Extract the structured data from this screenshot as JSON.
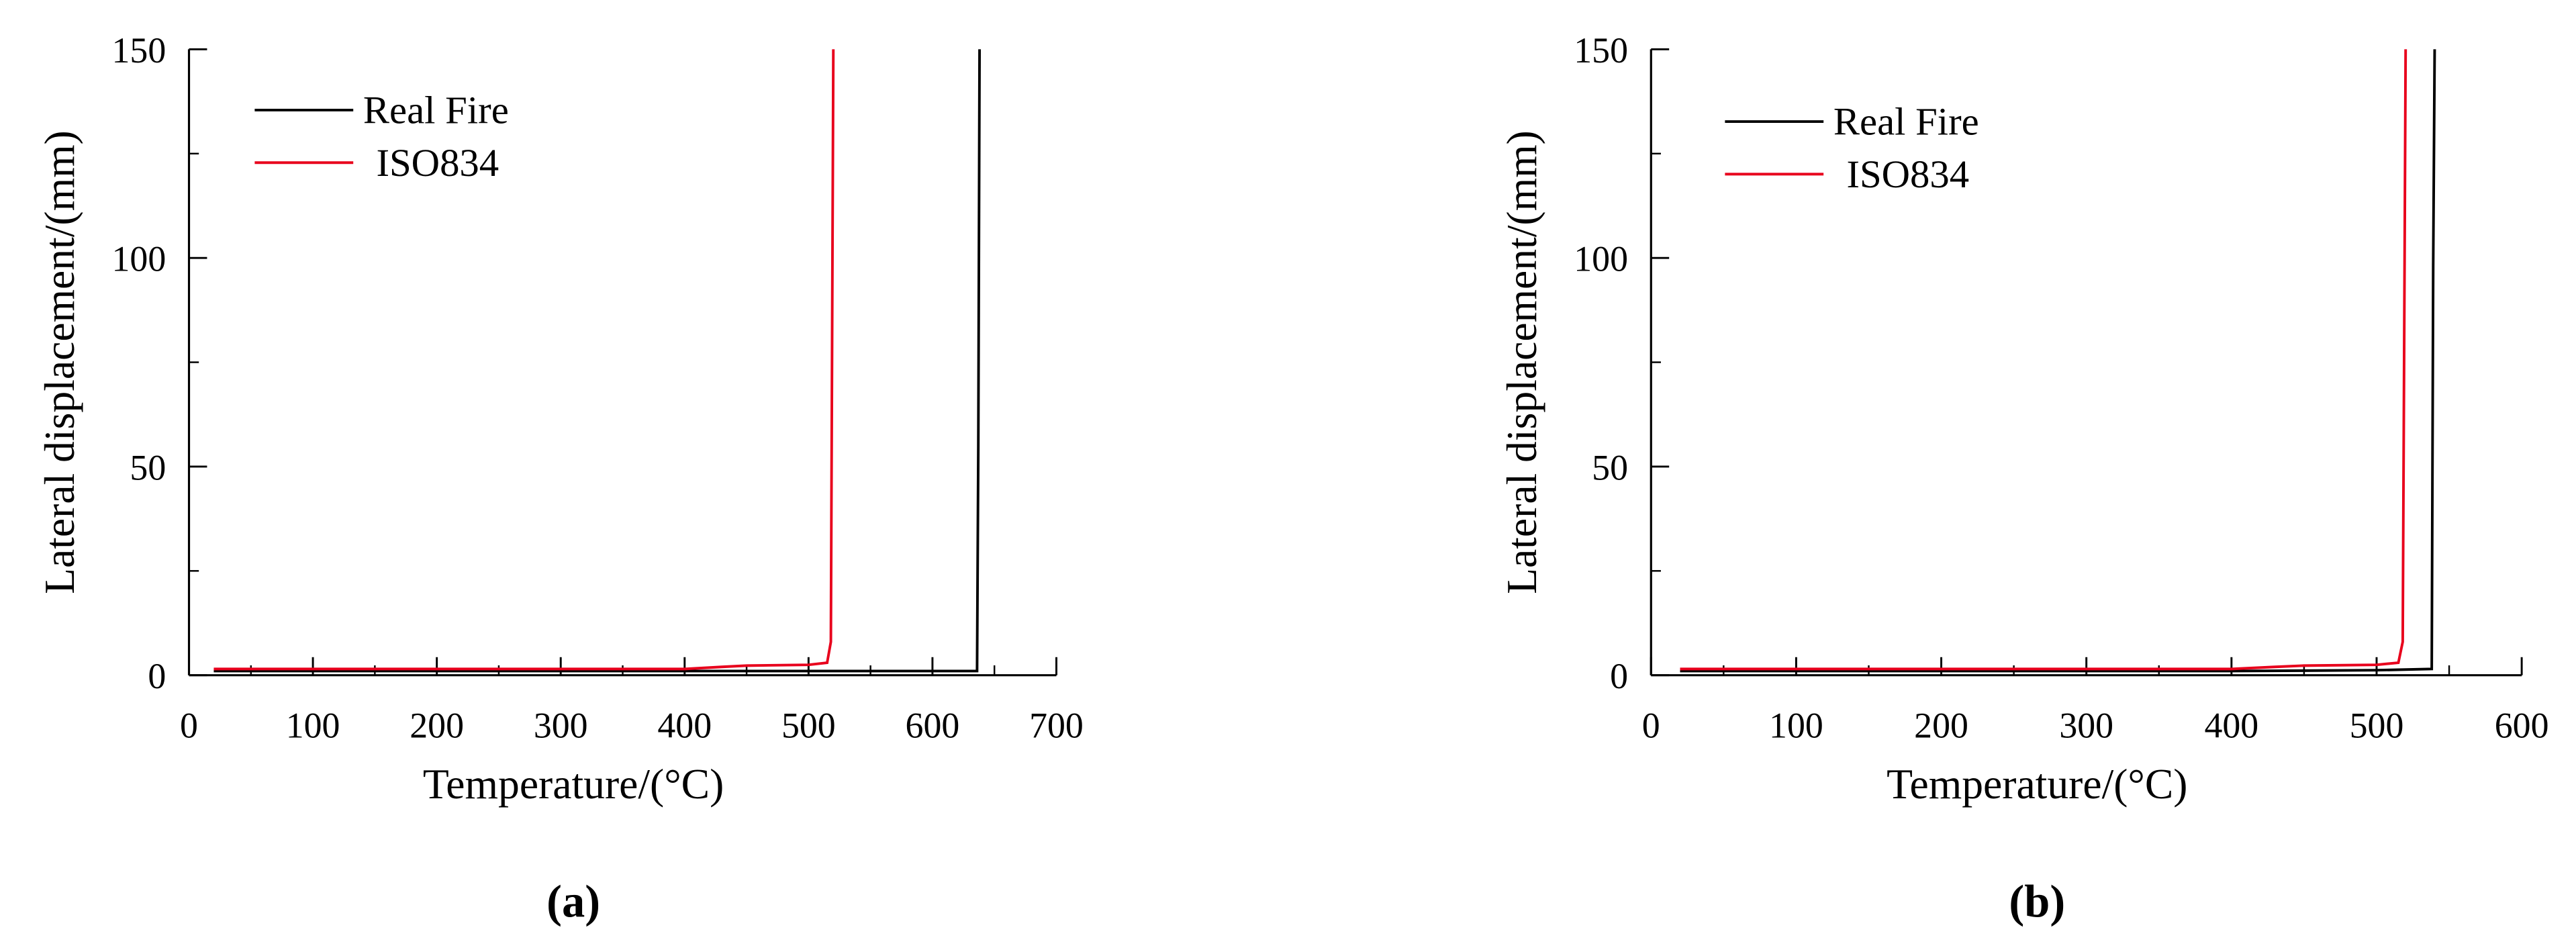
{
  "chart_data": [
    {
      "type": "line",
      "label": "(a)",
      "x_label": "Temperature/(°C)",
      "y_label": "Lateral displacement/(mm)",
      "xlim": [
        0,
        700
      ],
      "ylim": [
        0,
        150
      ],
      "xticks": [
        0,
        100,
        200,
        300,
        400,
        500,
        600,
        700
      ],
      "yticks": [
        0,
        50,
        100,
        150
      ],
      "legend": "upper left",
      "series": [
        {
          "name": "Real Fire",
          "color": "#000000",
          "x": [
            20,
            100,
            200,
            300,
            400,
            500,
            600,
            636,
            637,
            638
          ],
          "values": [
            1,
            1,
            1,
            1,
            1,
            1,
            1,
            1,
            55,
            150
          ]
        },
        {
          "name": "ISO834",
          "color": "#e8001c",
          "x": [
            20,
            100,
            200,
            300,
            400,
            430,
            450,
            500,
            515,
            518,
            520
          ],
          "values": [
            1.5,
            1.5,
            1.5,
            1.5,
            1.5,
            2,
            2.3,
            2.5,
            3,
            8,
            150
          ]
        }
      ]
    },
    {
      "type": "line",
      "label": "(b)",
      "x_label": "Temperature/(°C)",
      "y_label": "Lateral displacement/(mm)",
      "xlim": [
        0,
        600
      ],
      "ylim": [
        0,
        150
      ],
      "xticks": [
        0,
        100,
        200,
        300,
        400,
        500,
        600
      ],
      "yticks": [
        0,
        50,
        100,
        150
      ],
      "legend": "upper left",
      "series": [
        {
          "name": "Real Fire",
          "color": "#000000",
          "x": [
            20,
            100,
            200,
            300,
            400,
            500,
            538,
            539,
            540
          ],
          "values": [
            1,
            1,
            1,
            1,
            1,
            1.2,
            1.5,
            98,
            150
          ]
        },
        {
          "name": "ISO834",
          "color": "#e8001c",
          "x": [
            20,
            100,
            200,
            300,
            400,
            430,
            450,
            500,
            515,
            518,
            520
          ],
          "values": [
            1.5,
            1.5,
            1.5,
            1.5,
            1.5,
            2,
            2.3,
            2.5,
            3,
            8,
            150
          ]
        }
      ]
    }
  ]
}
